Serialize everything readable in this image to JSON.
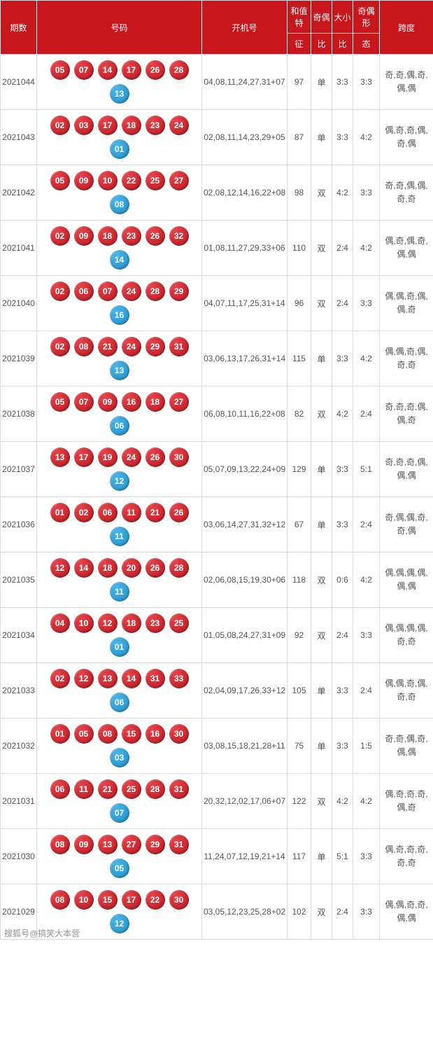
{
  "columns": {
    "c1": "期数",
    "c2": "号码",
    "c3": "开机号",
    "c4a": "和值特",
    "c4b": "征",
    "c5a": "奇偶",
    "c5b": "比",
    "c6a": "大小",
    "c6b": "比",
    "c7a": "奇偶形",
    "c7b": "态",
    "c8": "跨度"
  },
  "col_widths": {
    "c1": 50,
    "c2": 232,
    "c3": 120,
    "c4": 32,
    "c5": 28,
    "c6": 28,
    "c7": 36,
    "c8": 76
  },
  "ball_colors": {
    "red": "#c8161d",
    "blue": "#2a9fd6"
  },
  "header_bg": "#c8161d",
  "rows": [
    {
      "period": "2021044",
      "reds": [
        "05",
        "07",
        "14",
        "17",
        "26",
        "28"
      ],
      "blue": "13",
      "kaiji": "04,08,11,24,27,31+07",
      "hezhi": "97",
      "qo1": "单",
      "qo2": "3:3",
      "dx": "3:3",
      "form": "奇,奇,偶,奇,偶,偶"
    },
    {
      "period": "2021043",
      "reds": [
        "02",
        "03",
        "17",
        "18",
        "23",
        "24"
      ],
      "blue": "01",
      "kaiji": "02,08,11,14,23,29+05",
      "hezhi": "87",
      "qo1": "单",
      "qo2": "3:3",
      "dx": "4:2",
      "form": "偶,奇,奇,偶,奇,偶"
    },
    {
      "period": "2021042",
      "reds": [
        "05",
        "09",
        "10",
        "22",
        "25",
        "27"
      ],
      "blue": "08",
      "kaiji": "02,08,12,14,16,22+08",
      "hezhi": "98",
      "qo1": "双",
      "qo2": "4:2",
      "dx": "3:3",
      "form": "奇,奇,偶,偶,奇,奇"
    },
    {
      "period": "2021041",
      "reds": [
        "02",
        "09",
        "18",
        "23",
        "26",
        "32"
      ],
      "blue": "14",
      "kaiji": "01,08,11,27,29,33+06",
      "hezhi": "110",
      "qo1": "双",
      "qo2": "2:4",
      "dx": "4:2",
      "form": "偶,奇,偶,奇,偶,偶"
    },
    {
      "period": "2021040",
      "reds": [
        "02",
        "06",
        "07",
        "24",
        "28",
        "29"
      ],
      "blue": "16",
      "kaiji": "04,07,11,17,25,31+14",
      "hezhi": "96",
      "qo1": "双",
      "qo2": "2:4",
      "dx": "3:3",
      "form": "偶,偶,奇,偶,偶,奇"
    },
    {
      "period": "2021039",
      "reds": [
        "02",
        "08",
        "21",
        "24",
        "29",
        "31"
      ],
      "blue": "13",
      "kaiji": "03,06,13,17,26,31+14",
      "hezhi": "115",
      "qo1": "单",
      "qo2": "3:3",
      "dx": "4:2",
      "form": "偶,偶,奇,偶,奇,奇"
    },
    {
      "period": "2021038",
      "reds": [
        "05",
        "07",
        "09",
        "16",
        "18",
        "27"
      ],
      "blue": "06",
      "kaiji": "06,08,10,11,16,22+08",
      "hezhi": "82",
      "qo1": "双",
      "qo2": "4:2",
      "dx": "2:4",
      "form": "奇,奇,奇,偶,偶,奇"
    },
    {
      "period": "2021037",
      "reds": [
        "13",
        "17",
        "19",
        "24",
        "26",
        "30"
      ],
      "blue": "12",
      "kaiji": "05,07,09,13,22,24+09",
      "hezhi": "129",
      "qo1": "单",
      "qo2": "3:3",
      "dx": "5:1",
      "form": "奇,奇,奇,偶,偶,偶"
    },
    {
      "period": "2021036",
      "reds": [
        "01",
        "02",
        "06",
        "11",
        "21",
        "26"
      ],
      "blue": "11",
      "kaiji": "03,06,14,27,31,32+12",
      "hezhi": "67",
      "qo1": "单",
      "qo2": "3:3",
      "dx": "2:4",
      "form": "奇,偶,偶,奇,奇,偶"
    },
    {
      "period": "2021035",
      "reds": [
        "12",
        "14",
        "18",
        "20",
        "26",
        "28"
      ],
      "blue": "11",
      "kaiji": "02,06,08,15,19,30+06",
      "hezhi": "118",
      "qo1": "双",
      "qo2": "0:6",
      "dx": "4:2",
      "form": "偶,偶,偶,偶,偶,偶"
    },
    {
      "period": "2021034",
      "reds": [
        "04",
        "10",
        "12",
        "18",
        "23",
        "25"
      ],
      "blue": "01",
      "kaiji": "01,05,08,24,27,31+09",
      "hezhi": "92",
      "qo1": "双",
      "qo2": "2:4",
      "dx": "3:3",
      "form": "偶,偶,偶,偶,奇,奇"
    },
    {
      "period": "2021033",
      "reds": [
        "02",
        "12",
        "13",
        "14",
        "31",
        "33"
      ],
      "blue": "06",
      "kaiji": "02,04,09,17,26,33+12",
      "hezhi": "105",
      "qo1": "单",
      "qo2": "3:3",
      "dx": "2:4",
      "form": "偶,偶,奇,偶,奇,奇"
    },
    {
      "period": "2021032",
      "reds": [
        "01",
        "05",
        "08",
        "15",
        "16",
        "30"
      ],
      "blue": "03",
      "kaiji": "03,08,15,18,21,28+11",
      "hezhi": "75",
      "qo1": "单",
      "qo2": "3:3",
      "dx": "1:5",
      "form": "奇,奇,偶,奇,偶,偶"
    },
    {
      "period": "2021031",
      "reds": [
        "06",
        "11",
        "21",
        "25",
        "28",
        "31"
      ],
      "blue": "07",
      "kaiji": "20,32,12,02,17,06+07",
      "hezhi": "122",
      "qo1": "双",
      "qo2": "4:2",
      "dx": "4:2",
      "form": "偶,奇,奇,奇,偶,奇"
    },
    {
      "period": "2021030",
      "reds": [
        "08",
        "09",
        "13",
        "27",
        "29",
        "31"
      ],
      "blue": "05",
      "kaiji": "11,24,07,12,19,21+14",
      "hezhi": "117",
      "qo1": "单",
      "qo2": "5:1",
      "dx": "3:3",
      "form": "偶,奇,奇,奇,奇,奇"
    },
    {
      "period": "2021029",
      "reds": [
        "08",
        "10",
        "15",
        "17",
        "22",
        "30"
      ],
      "blue": "12",
      "kaiji": "03,05,12,23,25,28+02",
      "hezhi": "102",
      "qo1": "双",
      "qo2": "2:4",
      "dx": "3:3",
      "form": "偶,偶,奇,奇,偶,偶"
    }
  ],
  "watermark": "搜狐号@搞笑大本营"
}
